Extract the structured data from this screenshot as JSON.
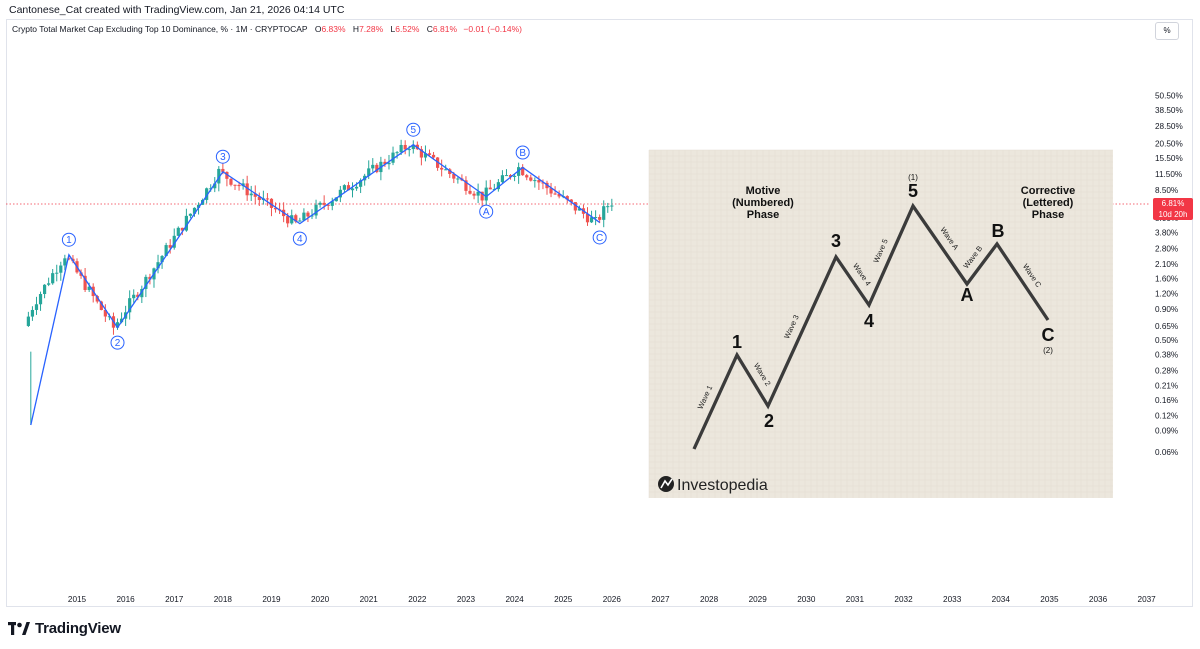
{
  "header": {
    "credit": "Cantonese_Cat created with TradingView.com, Jan 21, 2026 04:14 UTC",
    "symbol": "Crypto Total Market Cap Excluding Top 10 Dominance, % · 1M · CRYPTOCAP",
    "ohlc": {
      "o_label": "O",
      "o_value": "6.83%",
      "h_label": "H",
      "h_value": "7.28%",
      "l_label": "L",
      "l_value": "6.52%",
      "c_label": "C",
      "c_value": "6.81%",
      "change": "−0.01 (−0.14%)"
    }
  },
  "axis": {
    "unit_button": "%",
    "price_tag_value": "6.81%",
    "price_tag_countdown": "10d 20h"
  },
  "footer": {
    "brand": "TradingView"
  },
  "overlay": {
    "brand": "Investopedia",
    "motive_title": [
      "Motive",
      "(Numbered)",
      "Phase"
    ],
    "corrective_title": [
      "Corrective",
      "(Lettered)",
      "Phase"
    ]
  },
  "colors": {
    "up": "#26a69a",
    "down": "#ef5350",
    "wave_line": "#2962ff",
    "price_line": "#f23645",
    "overlay_bg": "#ece7dd",
    "overlay_line": "#3b3b3b"
  },
  "chart_data": {
    "type": "candlestick",
    "title": "Crypto Total Market Cap Excluding Top 10 Dominance, % · 1M · CRYPTOCAP",
    "y_scale": "log",
    "y_ticks": [
      "50.50%",
      "38.50%",
      "28.50%",
      "20.50%",
      "15.50%",
      "11.50%",
      "8.50%",
      "5.00%",
      "3.80%",
      "2.80%",
      "2.10%",
      "1.60%",
      "1.20%",
      "0.90%",
      "0.65%",
      "0.50%",
      "0.38%",
      "0.28%",
      "0.21%",
      "0.16%",
      "0.12%",
      "0.09%",
      "0.06%"
    ],
    "x_ticks": [
      "2015",
      "2016",
      "2017",
      "2018",
      "2019",
      "2020",
      "2021",
      "2022",
      "2023",
      "2024",
      "2025",
      "2026",
      "2027",
      "2028",
      "2029",
      "2030",
      "2031",
      "2032",
      "2033",
      "2034",
      "2035",
      "2036",
      "2037"
    ],
    "last_close": 6.81,
    "wave_count": [
      {
        "label": "1",
        "date": "2014-11",
        "value": 2.5
      },
      {
        "label": "2",
        "date": "2015-11",
        "value": 0.63
      },
      {
        "label": "3",
        "date": "2018-01",
        "value": 12.0
      },
      {
        "label": "4",
        "date": "2019-08",
        "value": 4.5
      },
      {
        "label": "5",
        "date": "2021-12",
        "value": 20.0
      },
      {
        "label": "A",
        "date": "2023-06",
        "value": 7.5
      },
      {
        "label": "B",
        "date": "2024-03",
        "value": 13.0
      },
      {
        "label": "C",
        "date": "2025-10",
        "value": 4.6
      }
    ],
    "projection_diagram": {
      "points": [
        "start",
        "1",
        "2",
        "3",
        "4",
        "5",
        "A",
        "B",
        "C"
      ],
      "degree_labels": {
        "5": "(1)",
        "C": "(2)"
      },
      "segment_labels": [
        "Wave 1",
        "Wave 2",
        "Wave 3",
        "Wave 4",
        "Wave 5",
        "Wave A",
        "Wave B",
        "Wave C"
      ]
    }
  }
}
